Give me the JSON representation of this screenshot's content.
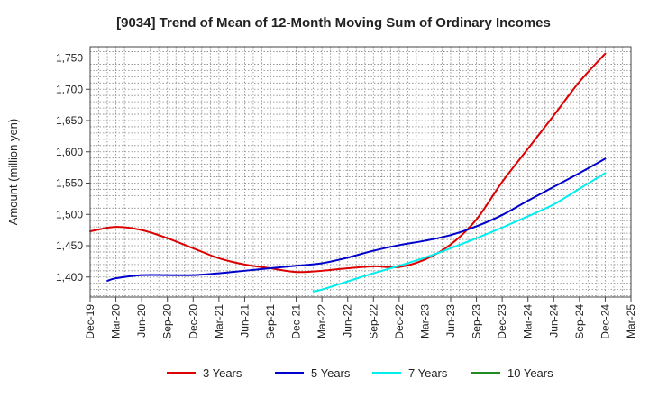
{
  "chart_data": {
    "type": "line",
    "title": "[9034]  Trend of Mean of 12-Month Moving Sum of Ordinary Incomes",
    "xlabel": "",
    "ylabel": "Amount (million yen)",
    "ylim": [
      1368,
      1768
    ],
    "yticks": [
      1400,
      1450,
      1500,
      1550,
      1600,
      1650,
      1700,
      1750
    ],
    "ytick_labels": [
      "1,400",
      "1,450",
      "1,500",
      "1,550",
      "1,600",
      "1,650",
      "1,700",
      "1,750"
    ],
    "x_tick_labels": [
      "Dec-19",
      "Mar-20",
      "Jun-20",
      "Sep-20",
      "Dec-20",
      "Mar-21",
      "Jun-21",
      "Sep-21",
      "Dec-21",
      "Mar-22",
      "Jun-22",
      "Sep-22",
      "Dec-22",
      "Mar-23",
      "Jun-23",
      "Sep-23",
      "Dec-23",
      "Mar-24",
      "Jun-24",
      "Sep-24",
      "Dec-24",
      "Mar-25"
    ],
    "grid": true,
    "legend_position": "bottom",
    "series": [
      {
        "name": "3 Years",
        "color": "#dd0000",
        "x": [
          0,
          1,
          2,
          3,
          4,
          5,
          6,
          7,
          8,
          9,
          10,
          11,
          12,
          13,
          14,
          15,
          16,
          17,
          18,
          19,
          20
        ],
        "values": [
          1473,
          1480,
          1475,
          1462,
          1446,
          1430,
          1420,
          1414,
          1408,
          1410,
          1414,
          1417,
          1416,
          1428,
          1452,
          1492,
          1552,
          1605,
          1658,
          1712,
          1757
        ]
      },
      {
        "name": "5 Years",
        "color": "#0000cc",
        "x": [
          0.67,
          1,
          2,
          3,
          4,
          5,
          6,
          7,
          8,
          9,
          10,
          11,
          12,
          13,
          14,
          15,
          16,
          17,
          18,
          19,
          20
        ],
        "values": [
          1394,
          1398,
          1403,
          1403,
          1403,
          1406,
          1410,
          1414,
          1418,
          1422,
          1431,
          1442,
          1451,
          1458,
          1467,
          1481,
          1499,
          1522,
          1544,
          1566,
          1589
        ]
      },
      {
        "name": "7 Years",
        "color": "#00eeee",
        "x": [
          8.67,
          9,
          10,
          11,
          12,
          13,
          14,
          15,
          16,
          17,
          18,
          19,
          20
        ],
        "values": [
          1377,
          1380,
          1393,
          1406,
          1418,
          1431,
          1446,
          1462,
          1479,
          1497,
          1516,
          1541,
          1566
        ]
      },
      {
        "name": "10 Years",
        "color": "#228b22",
        "x": [],
        "values": []
      }
    ]
  }
}
